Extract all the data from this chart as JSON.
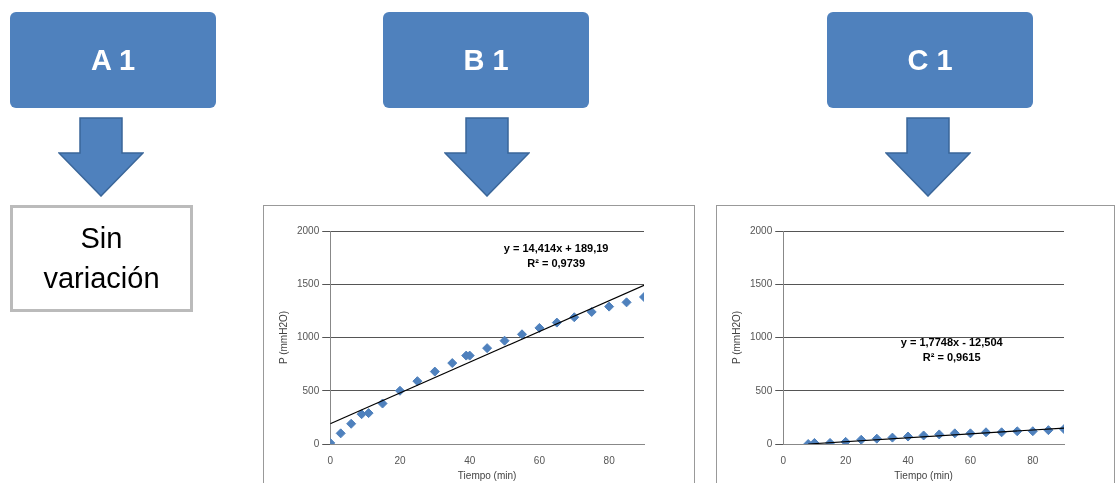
{
  "chart_data": [
    {
      "type": "other",
      "title": "A 1",
      "annotations": [
        "Sin variación"
      ]
    },
    {
      "type": "scatter",
      "title": "B 1",
      "xlabel": "Tiempo (min)",
      "ylabel": "P (mmH2O)",
      "xlim": [
        0,
        90
      ],
      "xticks": [
        0,
        20,
        40,
        60,
        80
      ],
      "ylim": [
        0,
        2000
      ],
      "yticks": [
        0,
        500,
        1000,
        1500,
        2000
      ],
      "grid": "y",
      "annotations": [
        "y = 14,414x + 189,19",
        "R² = 0,9739"
      ],
      "series": [
        {
          "type": "scatter",
          "marker": "diamond",
          "color": "#4f81bd",
          "x": [
            0,
            3,
            6,
            9,
            11,
            15,
            20,
            25,
            30,
            35,
            39,
            40,
            45,
            50,
            55,
            60,
            65,
            70,
            75,
            80,
            85,
            90
          ],
          "values": [
            10,
            100,
            190,
            280,
            290,
            380,
            500,
            590,
            680,
            760,
            830,
            830,
            900,
            970,
            1030,
            1090,
            1140,
            1190,
            1240,
            1290,
            1330,
            1380
          ]
        },
        {
          "type": "line",
          "marker": "none",
          "color": "#000000",
          "x": [
            0,
            90
          ],
          "values": [
            190,
            1490
          ]
        }
      ]
    },
    {
      "type": "scatter",
      "title": "C 1",
      "xlabel": "Tiempo (min)",
      "ylabel": "P (mmH2O)",
      "xlim": [
        0,
        90
      ],
      "xticks": [
        0,
        20,
        40,
        60,
        80
      ],
      "ylim": [
        0,
        2000
      ],
      "yticks": [
        0,
        500,
        1000,
        1500,
        2000
      ],
      "grid": "y",
      "annotations": [
        "y = 1,7748x - 12,504",
        "R² = 0,9615"
      ],
      "series": [
        {
          "type": "scatter",
          "marker": "diamond",
          "color": "#4f81bd",
          "x": [
            8,
            10,
            15,
            20,
            25,
            30,
            35,
            40,
            45,
            50,
            55,
            60,
            65,
            70,
            75,
            80,
            85,
            90
          ],
          "values": [
            0,
            10,
            10,
            20,
            40,
            50,
            60,
            70,
            80,
            90,
            100,
            100,
            110,
            110,
            120,
            120,
            130,
            140
          ]
        },
        {
          "type": "line",
          "marker": "none",
          "color": "#000000",
          "x": [
            8,
            90
          ],
          "values": [
            0,
            150
          ]
        }
      ]
    }
  ]
}
